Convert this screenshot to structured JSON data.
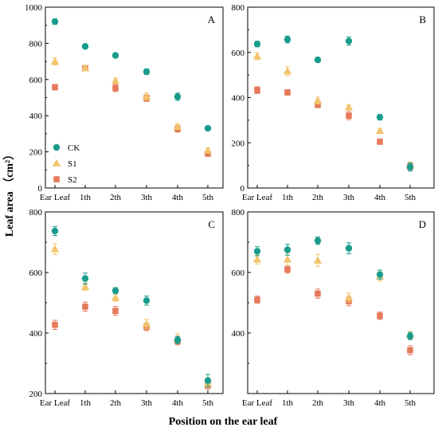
{
  "figure": {
    "ylabel": "Leaf area （cm²）",
    "xlabel": "Position on the ear leaf"
  },
  "legend": [
    {
      "name": "CK",
      "color": "#1a9c8c",
      "marker": "circle"
    },
    {
      "name": "S1",
      "color": "#f2c46c",
      "marker": "triangle"
    },
    {
      "name": "S2",
      "color": "#e57a5b",
      "marker": "square"
    }
  ],
  "chart_data": [
    {
      "type": "scatter",
      "panel": "A",
      "categories": [
        "Ear Leaf",
        "1th",
        "2th",
        "3th",
        "4th",
        "5th"
      ],
      "ylim": [
        0,
        1000
      ],
      "yticks": [
        0,
        200,
        400,
        600,
        800,
        1000
      ],
      "legend_position": "bottom-left",
      "series": [
        {
          "name": "CK",
          "values": [
            920,
            783,
            733,
            643,
            505,
            330
          ],
          "errors": [
            15,
            12,
            12,
            15,
            20,
            12
          ]
        },
        {
          "name": "S1",
          "values": [
            700,
            663,
            593,
            507,
            340,
            207
          ],
          "errors": [
            20,
            12,
            15,
            20,
            15,
            15
          ]
        },
        {
          "name": "S2",
          "values": [
            557,
            663,
            553,
            497,
            327,
            190
          ],
          "errors": [
            15,
            12,
            20,
            18,
            18,
            15
          ]
        }
      ]
    },
    {
      "type": "scatter",
      "panel": "B",
      "categories": [
        "Ear Leaf",
        "1th",
        "2th",
        "3th",
        "4th",
        "5th"
      ],
      "ylim": [
        0,
        800
      ],
      "yticks": [
        0,
        200,
        400,
        600,
        800
      ],
      "series": [
        {
          "name": "CK",
          "values": [
            637,
            657,
            567,
            650,
            313,
            93
          ],
          "errors": [
            12,
            15,
            10,
            18,
            12,
            18
          ]
        },
        {
          "name": "S1",
          "values": [
            583,
            517,
            387,
            357,
            253,
            100
          ],
          "errors": [
            15,
            20,
            15,
            10,
            10,
            15
          ]
        },
        {
          "name": "S2",
          "values": [
            433,
            423,
            367,
            320,
            205,
            95
          ],
          "errors": [
            15,
            12,
            10,
            18,
            12,
            15
          ]
        }
      ]
    },
    {
      "type": "scatter",
      "panel": "C",
      "categories": [
        "Ear Leaf",
        "1th",
        "2th",
        "3th",
        "4th",
        "5th"
      ],
      "ylim": [
        200,
        800
      ],
      "yticks": [
        200,
        400,
        600,
        800
      ],
      "series": [
        {
          "name": "CK",
          "values": [
            737,
            580,
            540,
            507,
            377,
            243
          ],
          "errors": [
            15,
            18,
            10,
            15,
            12,
            20
          ]
        },
        {
          "name": "S1",
          "values": [
            677,
            553,
            517,
            430,
            383,
            233
          ],
          "errors": [
            18,
            12,
            12,
            15,
            15,
            12
          ]
        },
        {
          "name": "S2",
          "values": [
            427,
            487,
            473,
            420,
            373,
            227
          ],
          "errors": [
            15,
            15,
            15,
            12,
            12,
            12
          ]
        }
      ]
    },
    {
      "type": "scatter",
      "panel": "D",
      "categories": [
        "Ear Leaf",
        "1th",
        "2th",
        "3th",
        "4th",
        "5th"
      ],
      "ylim": [
        200,
        800
      ],
      "yticks": [
        400,
        600,
        800
      ],
      "series": [
        {
          "name": "CK",
          "values": [
            670,
            675,
            705,
            680,
            593,
            390
          ],
          "errors": [
            15,
            18,
            12,
            18,
            15,
            12
          ]
        },
        {
          "name": "S1",
          "values": [
            643,
            643,
            640,
            517,
            587,
            393
          ],
          "errors": [
            15,
            20,
            20,
            15,
            15,
            12
          ]
        },
        {
          "name": "S2",
          "values": [
            510,
            610,
            530,
            505,
            457,
            343
          ],
          "errors": [
            12,
            12,
            15,
            15,
            12,
            15
          ]
        }
      ]
    }
  ]
}
